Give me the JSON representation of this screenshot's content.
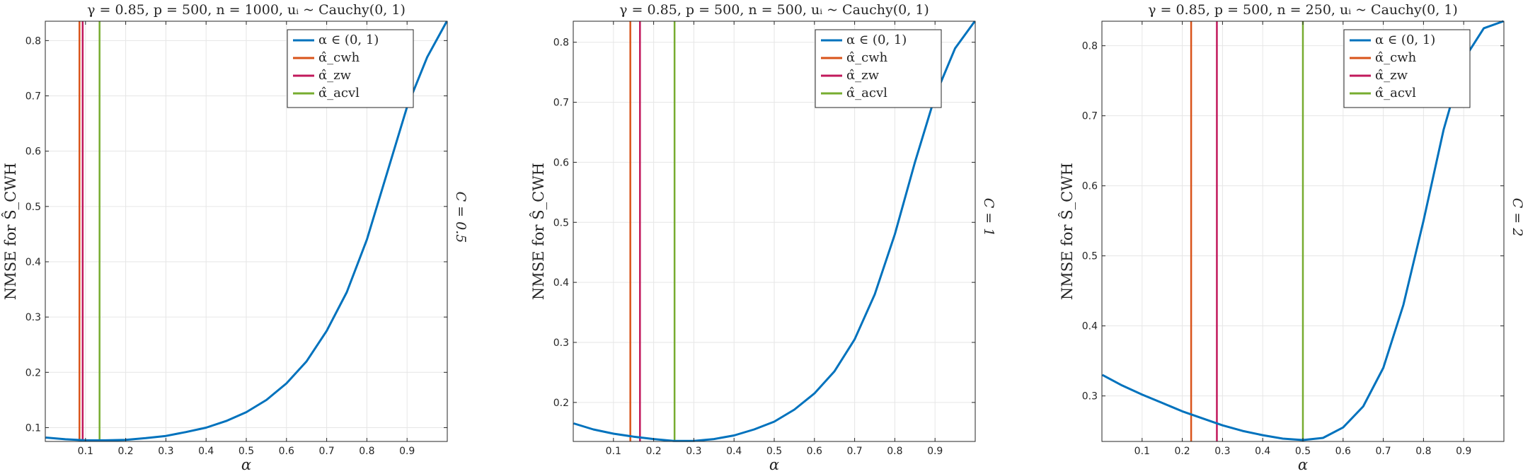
{
  "chart_data": [
    {
      "type": "line",
      "title": "γ = 0.85,  p = 500,  n = 1000,  uᵢ ~ Cauchy(0, 1)",
      "xlabel": "α",
      "ylabel": "NMSE for Ŝ_CWH",
      "side_label": "C = 0.5",
      "xlim": [
        0,
        1
      ],
      "ylim": [
        0.075,
        0.835
      ],
      "xticks": [
        0.1,
        0.2,
        0.3,
        0.4,
        0.5,
        0.6,
        0.7,
        0.8,
        0.9
      ],
      "yticks": [
        0.1,
        0.2,
        0.3,
        0.4,
        0.5,
        0.6,
        0.7,
        0.8
      ],
      "grid": true,
      "legend_position": "top-right",
      "series": [
        {
          "name": "α ∈ (0, 1)",
          "color": "#0072BD",
          "x": [
            0.001,
            0.05,
            0.1,
            0.15,
            0.2,
            0.25,
            0.3,
            0.35,
            0.4,
            0.45,
            0.5,
            0.55,
            0.6,
            0.65,
            0.7,
            0.75,
            0.8,
            0.85,
            0.9,
            0.95,
            0.999
          ],
          "y": [
            0.082,
            0.079,
            0.077,
            0.077,
            0.078,
            0.081,
            0.085,
            0.092,
            0.1,
            0.112,
            0.128,
            0.15,
            0.18,
            0.22,
            0.275,
            0.345,
            0.44,
            0.56,
            0.68,
            0.77,
            0.835
          ]
        }
      ],
      "vlines": [
        {
          "name": "α̂_cwh",
          "color": "#D95319",
          "x": 0.085
        },
        {
          "name": "α̂_zw",
          "color": "#C2185B",
          "x": 0.093
        },
        {
          "name": "α̂_acvl",
          "color": "#77AC30",
          "x": 0.135
        }
      ]
    },
    {
      "type": "line",
      "title": "γ = 0.85,  p = 500,  n = 500,  uᵢ ~ Cauchy(0, 1)",
      "xlabel": "α",
      "ylabel": "NMSE for Ŝ_CWH",
      "side_label": "C = 1",
      "xlim": [
        0,
        1
      ],
      "ylim": [
        0.135,
        0.835
      ],
      "xticks": [
        0.1,
        0.2,
        0.3,
        0.4,
        0.5,
        0.6,
        0.7,
        0.8,
        0.9
      ],
      "yticks": [
        0.2,
        0.3,
        0.4,
        0.5,
        0.6,
        0.7,
        0.8
      ],
      "grid": true,
      "legend_position": "top-right",
      "series": [
        {
          "name": "α ∈ (0, 1)",
          "color": "#0072BD",
          "x": [
            0.001,
            0.05,
            0.1,
            0.15,
            0.2,
            0.25,
            0.3,
            0.35,
            0.4,
            0.45,
            0.5,
            0.55,
            0.6,
            0.65,
            0.7,
            0.75,
            0.8,
            0.85,
            0.9,
            0.95,
            0.999
          ],
          "y": [
            0.165,
            0.155,
            0.148,
            0.143,
            0.139,
            0.136,
            0.136,
            0.139,
            0.145,
            0.155,
            0.168,
            0.188,
            0.215,
            0.252,
            0.305,
            0.38,
            0.48,
            0.6,
            0.71,
            0.79,
            0.835
          ]
        }
      ],
      "vlines": [
        {
          "name": "α̂_cwh",
          "color": "#D95319",
          "x": 0.142
        },
        {
          "name": "α̂_zw",
          "color": "#C2185B",
          "x": 0.166
        },
        {
          "name": "α̂_acvl",
          "color": "#77AC30",
          "x": 0.252
        }
      ]
    },
    {
      "type": "line",
      "title": "γ = 0.85,  p = 500,  n = 250,  uᵢ ~ Cauchy(0, 1)",
      "xlabel": "α",
      "ylabel": "NMSE for Ŝ_CWH",
      "side_label": "C = 2",
      "xlim": [
        0,
        1
      ],
      "ylim": [
        0.235,
        0.835
      ],
      "xticks": [
        0.1,
        0.2,
        0.3,
        0.4,
        0.5,
        0.6,
        0.7,
        0.8,
        0.9
      ],
      "yticks": [
        0.3,
        0.4,
        0.5,
        0.6,
        0.7,
        0.8
      ],
      "grid": true,
      "legend_position": "top-right",
      "series": [
        {
          "name": "α ∈ (0, 1)",
          "color": "#0072BD",
          "x": [
            0.001,
            0.05,
            0.1,
            0.15,
            0.2,
            0.25,
            0.3,
            0.35,
            0.4,
            0.45,
            0.5,
            0.55,
            0.6,
            0.65,
            0.7,
            0.75,
            0.8,
            0.85,
            0.9,
            0.95,
            0.999
          ],
          "y": [
            0.33,
            0.315,
            0.302,
            0.29,
            0.278,
            0.268,
            0.258,
            0.25,
            0.244,
            0.239,
            0.237,
            0.24,
            0.255,
            0.285,
            0.34,
            0.43,
            0.55,
            0.68,
            0.78,
            0.825,
            0.835
          ]
        }
      ],
      "vlines": [
        {
          "name": "α̂_cwh",
          "color": "#D95319",
          "x": 0.222
        },
        {
          "name": "α̂_zw",
          "color": "#C2185B",
          "x": 0.286
        },
        {
          "name": "α̂_acvl",
          "color": "#77AC30",
          "x": 0.5
        }
      ]
    }
  ]
}
